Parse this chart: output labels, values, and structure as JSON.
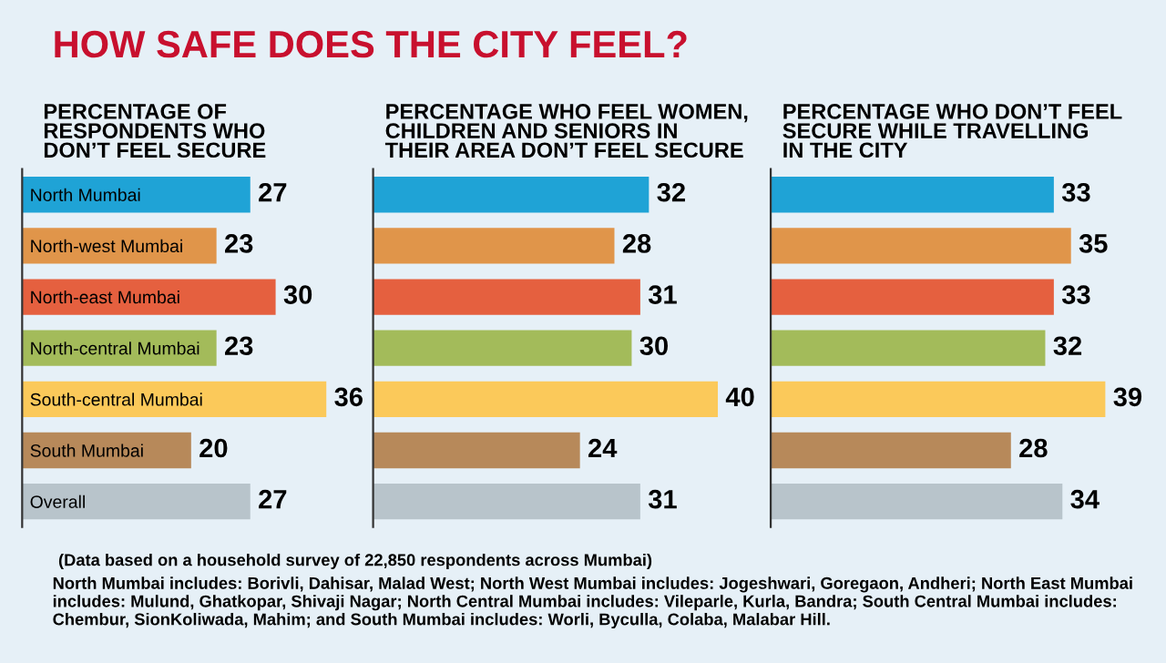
{
  "chart_data": [
    {
      "type": "bar",
      "orientation": "horizontal",
      "title": "HOW SAFE DOES THE CITY FEEL?",
      "subtitle": "PERCENTAGE OF\nRESPONDENTS WHO\nDON’T FEEL SECURE",
      "categories": [
        "North Mumbai",
        "North-west Mumbai",
        "North-east Mumbai",
        "North-central Mumbai",
        "South-central Mumbai",
        "South Mumbai",
        "Overall"
      ],
      "values": [
        27,
        23,
        30,
        23,
        36,
        20,
        27
      ],
      "colors": [
        "#1fa3d6",
        "#e0954a",
        "#e5603f",
        "#a3bb5a",
        "#fbc95a",
        "#b7895a",
        "#b8c4cb"
      ],
      "data_labels": true,
      "grid": false,
      "legend": false,
      "annotations": [
        "(Data based on a household survey of 22,850 respondents across Mumbai)",
        "North Mumbai includes: Borivli, Dahisar, Malad West; North West Mumbai includes: Jogeshwari, Goregaon, Andheri; North East Mumbai includes: Mulund, Ghatkopar, Shivaji Nagar; North Central Mumbai includes: Vileparle, Kurla, Bandra; South Central Mumbai includes: Chembur, SionKoliwada, Mahim; and South Mumbai includes: Worli, Byculla, Colaba, Malabar Hill."
      ]
    },
    {
      "type": "bar",
      "orientation": "horizontal",
      "subtitle": "PERCENTAGE WHO FEEL WOMEN,\nCHILDREN AND SENIORS IN\nTHEIR AREA DON’T FEEL SECURE",
      "categories": [
        null,
        null,
        null,
        null,
        null,
        null,
        null
      ],
      "values": [
        32,
        28,
        31,
        30,
        40,
        24,
        31
      ],
      "colors": [
        "#1fa3d6",
        "#e0954a",
        "#e5603f",
        "#a3bb5a",
        "#fbc95a",
        "#b7895a",
        "#b8c4cb"
      ],
      "data_labels": true,
      "grid": false,
      "legend": false
    },
    {
      "type": "bar",
      "orientation": "horizontal",
      "subtitle": "PERCENTAGE WHO DON’T FEEL\nSECURE WHILE TRAVELLING\nIN THE CITY",
      "categories": [
        null,
        null,
        null,
        null,
        null,
        null,
        null
      ],
      "values": [
        33,
        35,
        33,
        32,
        39,
        28,
        34
      ],
      "colors": [
        "#1fa3d6",
        "#e0954a",
        "#e5603f",
        "#a3bb5a",
        "#fbc95a",
        "#b7895a",
        "#b8c4cb"
      ],
      "data_labels": true,
      "grid": false,
      "legend": false
    }
  ]
}
